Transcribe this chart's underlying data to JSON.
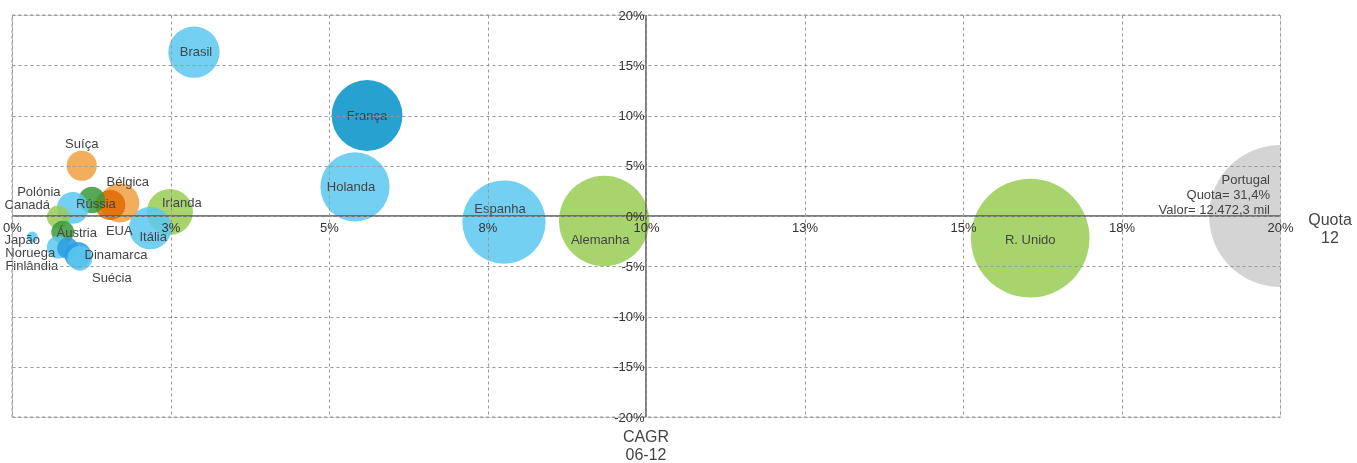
{
  "chart_data": {
    "type": "bubble",
    "xlabel": "Quota\n12",
    "series": [
      {
        "name": "Portugal",
        "color": "#cccccc",
        "x": [
          20
        ],
        "values": [
          0
        ],
        "sizes": [
          1
        ]
      },
      {
        "name": "R. Unido",
        "color": "#99cc55",
        "x": [
          16.06
        ],
        "values": [
          -2.2
        ],
        "sizes": [
          0.701
        ]
      },
      {
        "name": "Alemanha",
        "color": "#99cc55",
        "x": [
          9.34
        ],
        "values": [
          -0.5
        ],
        "sizes": [
          0.406
        ]
      },
      {
        "name": "Espanha",
        "color": "#5bc8f0",
        "x": [
          7.76
        ],
        "values": [
          -0.6
        ],
        "sizes": [
          0.345
        ]
      },
      {
        "name": "França",
        "color": "#0090c8",
        "x": [
          5.6
        ],
        "values": [
          10.0
        ],
        "sizes": [
          0.25
        ]
      },
      {
        "name": "Holanda",
        "color": "#5bc8f0",
        "x": [
          5.41
        ],
        "values": [
          2.9
        ],
        "sizes": [
          0.238
        ]
      },
      {
        "name": "Brasil",
        "color": "#5bc8f0",
        "x": [
          2.87
        ],
        "values": [
          16.3
        ],
        "sizes": [
          0.131
        ]
      },
      {
        "name": "Irlanda",
        "color": "#99cc55",
        "x": [
          2.49
        ],
        "values": [
          0.4
        ],
        "sizes": [
          0.106
        ]
      },
      {
        "name": "Itália",
        "color": "#5bc8f0",
        "x": [
          2.18
        ],
        "values": [
          -1.2
        ],
        "sizes": [
          0.09
        ]
      },
      {
        "name": "Bélgica",
        "color": "#f0a040",
        "x": [
          1.7
        ],
        "values": [
          1.3
        ],
        "sizes": [
          0.076
        ]
      },
      {
        "name": "EUA",
        "color": "#e06a00",
        "x": [
          1.55
        ],
        "values": [
          1.1
        ],
        "sizes": [
          0.045
        ]
      },
      {
        "name": "Rússia",
        "color": "#3a9a3a",
        "x": [
          1.26
        ],
        "values": [
          1.6
        ],
        "sizes": [
          0.035
        ]
      },
      {
        "name": "Polónia",
        "color": "#5bc8f0",
        "x": [
          0.96
        ],
        "values": [
          0.8
        ],
        "sizes": [
          0.05
        ]
      },
      {
        "name": "Suíça",
        "color": "#f0a040",
        "x": [
          1.1
        ],
        "values": [
          5.0
        ],
        "sizes": [
          0.045
        ]
      },
      {
        "name": "Canadá",
        "color": "#99cc55",
        "x": [
          0.73
        ],
        "values": [
          -0.1
        ],
        "sizes": [
          0.026
        ]
      },
      {
        "name": "Áustria",
        "color": "#3a9a3a",
        "x": [
          0.8
        ],
        "values": [
          -1.6
        ],
        "sizes": [
          0.026
        ]
      },
      {
        "name": "Japão",
        "color": "#5bc8f0",
        "x": [
          0.32
        ],
        "values": [
          -2.1
        ],
        "sizes": [
          0.006
        ]
      },
      {
        "name": "Noruega",
        "color": "#5bc8f0",
        "x": [
          0.73
        ],
        "values": [
          -3.1
        ],
        "sizes": [
          0.026
        ]
      },
      {
        "name": "Finlândia",
        "color": "#2a9ee0",
        "x": [
          0.88
        ],
        "values": [
          -3.2
        ],
        "sizes": [
          0.0225
        ]
      },
      {
        "name": "Dinamarca",
        "color": "#2a9ee0",
        "x": [
          1.04
        ],
        "values": [
          -3.9
        ],
        "sizes": [
          0.035
        ]
      },
      {
        "name": "Suécia",
        "color": "#5bc8f0",
        "x": [
          1.07
        ],
        "values": [
          -4.2
        ],
        "sizes": [
          0.031
        ]
      }
    ],
    "annotations": [
      "Quota= 31,4%",
      "Valor=  12.472,3 mil",
      "CAGR\n06-12"
    ],
    "xlim": [
      0,
      20
    ],
    "ylim": [
      -20,
      20
    ],
    "xticks": [
      {
        "value": 0,
        "label": "0%"
      },
      {
        "value": 2.5,
        "label": "3%"
      },
      {
        "value": 5,
        "label": "5%"
      },
      {
        "value": 7.5,
        "label": "8%"
      },
      {
        "value": 10,
        "label": "10%"
      },
      {
        "value": 12.5,
        "label": "13%"
      },
      {
        "value": 15,
        "label": "15%"
      },
      {
        "value": 17.5,
        "label": "18%"
      },
      {
        "value": 20,
        "label": "20%"
      }
    ],
    "yticks": [
      {
        "value": -20,
        "label": "-20%"
      },
      {
        "value": -15,
        "label": "-15%"
      },
      {
        "value": -10,
        "label": "-10%"
      },
      {
        "value": -5,
        "label": "-5%"
      },
      {
        "value": 0,
        "label": "0%"
      },
      {
        "value": 5,
        "label": "5%"
      },
      {
        "value": 10,
        "label": "10%"
      },
      {
        "value": 15,
        "label": "15%"
      },
      {
        "value": 20,
        "label": "20%"
      }
    ],
    "grid": true
  }
}
